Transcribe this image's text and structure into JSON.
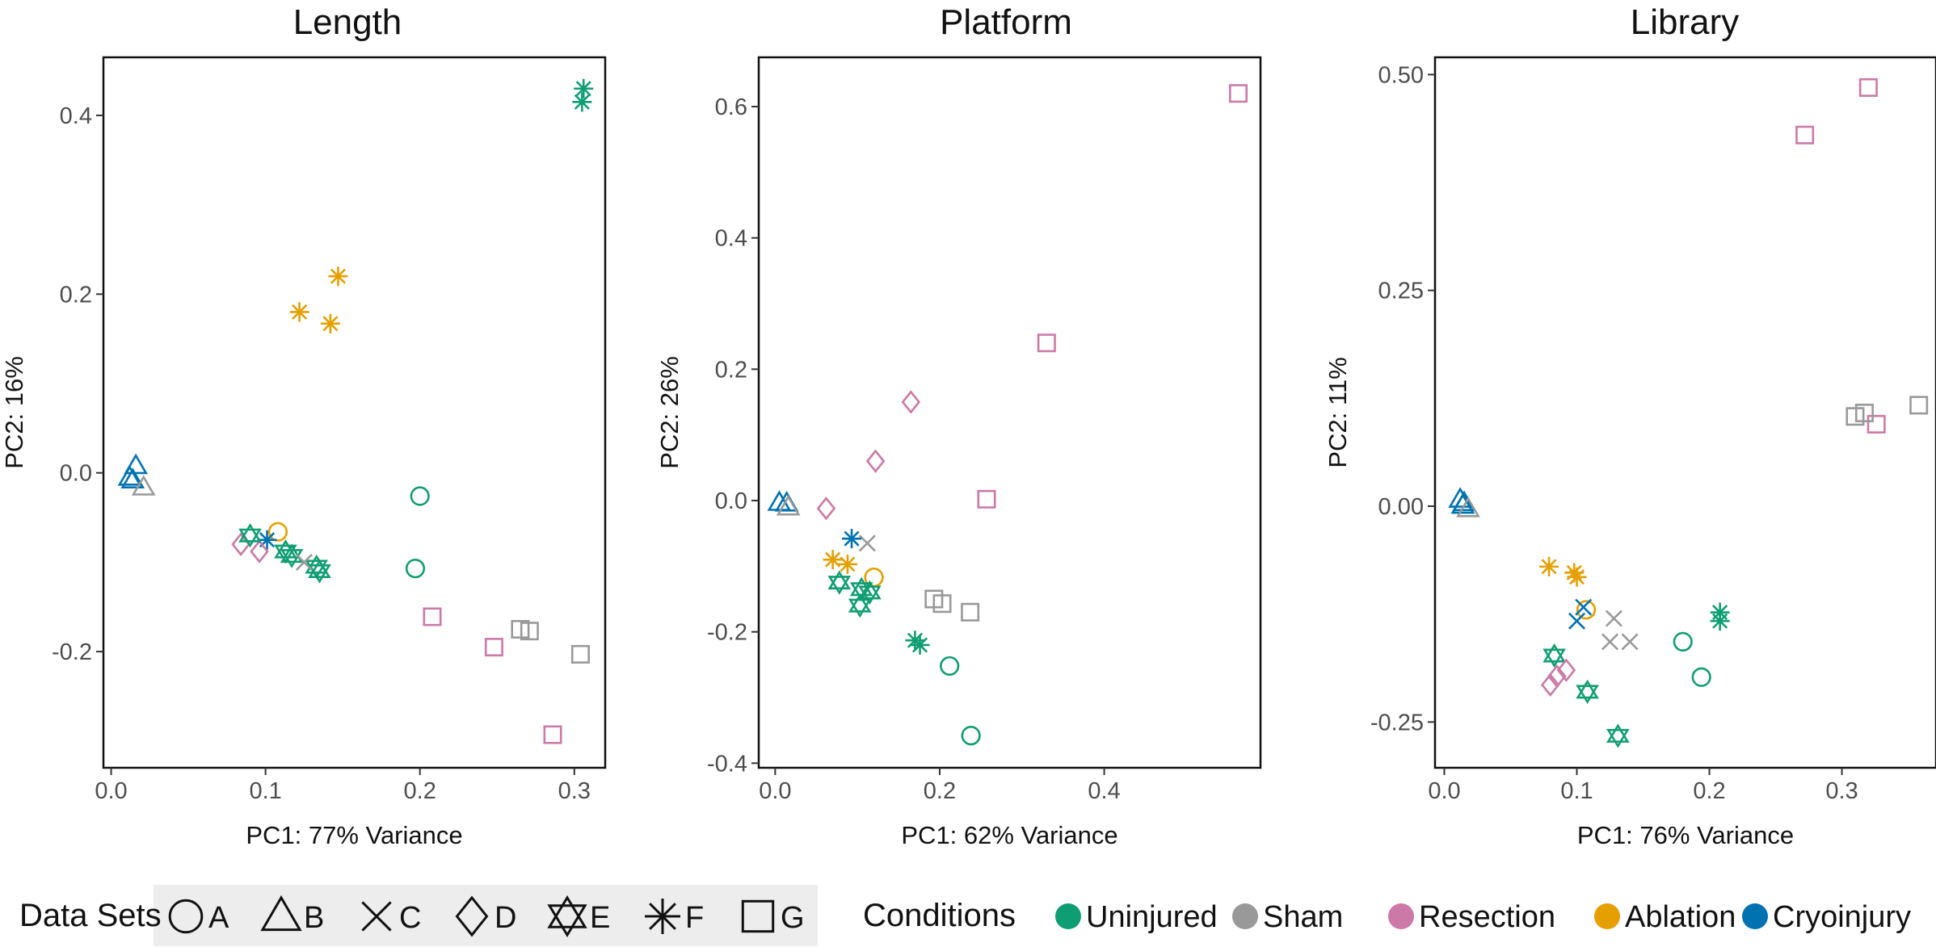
{
  "figure": {
    "colors": {
      "Uninjured": "#0f9e73",
      "Sham": "#999999",
      "Resection": "#cc79a7",
      "Ablation": "#e69f00",
      "Cryoinjury": "#0072b2"
    },
    "shape_icons": {
      "A": "circle",
      "B": "triangle-up",
      "C": "cross-x",
      "D": "diamond",
      "E": "star-of-david",
      "F": "asterisk",
      "G": "square"
    }
  },
  "legend": {
    "datasets_title": "Data Sets",
    "datasets": [
      "A",
      "B",
      "C",
      "D",
      "E",
      "F",
      "G"
    ],
    "conditions_title": "Conditions",
    "conditions": [
      "Uninjured",
      "Sham",
      "Resection",
      "Ablation",
      "Cryoinjury"
    ]
  },
  "chart_data": [
    {
      "type": "scatter",
      "title": "Length",
      "xlabel": "PC1: 77% Variance",
      "ylabel": "PC2: 16%",
      "xlim": [
        -0.005,
        0.32
      ],
      "ylim": [
        -0.33,
        0.465
      ],
      "xticks": [
        0.0,
        0.1,
        0.2,
        0.3
      ],
      "xtick_labels": [
        "0.0",
        "0.1",
        "0.2",
        "0.3"
      ],
      "yticks": [
        -0.2,
        0.0,
        0.2,
        0.4
      ],
      "ytick_labels": [
        "-0.2",
        "0.0",
        "0.2",
        "0.4"
      ],
      "grid": false,
      "points": [
        {
          "x": 0.306,
          "y": 0.43,
          "dataset": "F",
          "condition": "Uninjured"
        },
        {
          "x": 0.305,
          "y": 0.415,
          "dataset": "F",
          "condition": "Uninjured"
        },
        {
          "x": 0.147,
          "y": 0.22,
          "dataset": "F",
          "condition": "Ablation"
        },
        {
          "x": 0.122,
          "y": 0.18,
          "dataset": "F",
          "condition": "Ablation"
        },
        {
          "x": 0.142,
          "y": 0.167,
          "dataset": "F",
          "condition": "Ablation"
        },
        {
          "x": 0.016,
          "y": 0.008,
          "dataset": "B",
          "condition": "Cryoinjury"
        },
        {
          "x": 0.012,
          "y": -0.005,
          "dataset": "B",
          "condition": "Cryoinjury"
        },
        {
          "x": 0.014,
          "y": -0.008,
          "dataset": "B",
          "condition": "Cryoinjury"
        },
        {
          "x": 0.021,
          "y": -0.016,
          "dataset": "B",
          "condition": "Sham"
        },
        {
          "x": 0.2,
          "y": -0.026,
          "dataset": "A",
          "condition": "Uninjured"
        },
        {
          "x": 0.197,
          "y": -0.107,
          "dataset": "A",
          "condition": "Uninjured"
        },
        {
          "x": 0.108,
          "y": -0.066,
          "dataset": "A",
          "condition": "Ablation"
        },
        {
          "x": 0.101,
          "y": -0.075,
          "dataset": "F",
          "condition": "Cryoinjury"
        },
        {
          "x": 0.084,
          "y": -0.08,
          "dataset": "D",
          "condition": "Resection"
        },
        {
          "x": 0.096,
          "y": -0.088,
          "dataset": "D",
          "condition": "Resection"
        },
        {
          "x": 0.09,
          "y": -0.07,
          "dataset": "E",
          "condition": "Uninjured"
        },
        {
          "x": 0.113,
          "y": -0.088,
          "dataset": "E",
          "condition": "Uninjured"
        },
        {
          "x": 0.117,
          "y": -0.093,
          "dataset": "E",
          "condition": "Uninjured"
        },
        {
          "x": 0.133,
          "y": -0.105,
          "dataset": "E",
          "condition": "Uninjured"
        },
        {
          "x": 0.135,
          "y": -0.11,
          "dataset": "E",
          "condition": "Uninjured"
        },
        {
          "x": 0.125,
          "y": -0.1,
          "dataset": "C",
          "condition": "Sham"
        },
        {
          "x": 0.208,
          "y": -0.161,
          "dataset": "G",
          "condition": "Resection"
        },
        {
          "x": 0.248,
          "y": -0.195,
          "dataset": "G",
          "condition": "Resection"
        },
        {
          "x": 0.286,
          "y": -0.293,
          "dataset": "G",
          "condition": "Resection"
        },
        {
          "x": 0.265,
          "y": -0.175,
          "dataset": "G",
          "condition": "Sham"
        },
        {
          "x": 0.271,
          "y": -0.177,
          "dataset": "G",
          "condition": "Sham"
        },
        {
          "x": 0.304,
          "y": -0.203,
          "dataset": "G",
          "condition": "Sham"
        }
      ]
    },
    {
      "type": "scatter",
      "title": "Platform",
      "xlabel": "PC1: 62% Variance",
      "ylabel": "PC2: 26%",
      "xlim": [
        -0.02,
        0.59
      ],
      "ylim": [
        -0.407,
        0.675
      ],
      "xticks": [
        0.0,
        0.2,
        0.4
      ],
      "xtick_labels": [
        "0.0",
        "0.2",
        "0.4"
      ],
      "yticks": [
        -0.4,
        -0.2,
        0.0,
        0.2,
        0.4,
        0.6
      ],
      "ytick_labels": [
        "-0.4",
        "-0.2",
        "0.0",
        "0.2",
        "0.4",
        "0.6"
      ],
      "grid": false,
      "points": [
        {
          "x": 0.563,
          "y": 0.62,
          "dataset": "G",
          "condition": "Resection"
        },
        {
          "x": 0.33,
          "y": 0.24,
          "dataset": "G",
          "condition": "Resection"
        },
        {
          "x": 0.257,
          "y": 0.002,
          "dataset": "G",
          "condition": "Resection"
        },
        {
          "x": 0.165,
          "y": 0.15,
          "dataset": "D",
          "condition": "Resection"
        },
        {
          "x": 0.122,
          "y": 0.06,
          "dataset": "D",
          "condition": "Resection"
        },
        {
          "x": 0.062,
          "y": -0.012,
          "dataset": "D",
          "condition": "Resection"
        },
        {
          "x": 0.005,
          "y": -0.003,
          "dataset": "B",
          "condition": "Cryoinjury"
        },
        {
          "x": 0.014,
          "y": -0.004,
          "dataset": "B",
          "condition": "Cryoinjury"
        },
        {
          "x": 0.016,
          "y": -0.01,
          "dataset": "B",
          "condition": "Sham"
        },
        {
          "x": 0.112,
          "y": -0.065,
          "dataset": "C",
          "condition": "Sham"
        },
        {
          "x": 0.093,
          "y": -0.058,
          "dataset": "F",
          "condition": "Cryoinjury"
        },
        {
          "x": 0.07,
          "y": -0.09,
          "dataset": "F",
          "condition": "Ablation"
        },
        {
          "x": 0.088,
          "y": -0.097,
          "dataset": "F",
          "condition": "Ablation"
        },
        {
          "x": 0.12,
          "y": -0.117,
          "dataset": "A",
          "condition": "Ablation"
        },
        {
          "x": 0.078,
          "y": -0.125,
          "dataset": "E",
          "condition": "Uninjured"
        },
        {
          "x": 0.105,
          "y": -0.135,
          "dataset": "E",
          "condition": "Uninjured"
        },
        {
          "x": 0.115,
          "y": -0.14,
          "dataset": "E",
          "condition": "Uninjured"
        },
        {
          "x": 0.103,
          "y": -0.16,
          "dataset": "E",
          "condition": "Uninjured"
        },
        {
          "x": 0.193,
          "y": -0.15,
          "dataset": "G",
          "condition": "Sham"
        },
        {
          "x": 0.203,
          "y": -0.157,
          "dataset": "G",
          "condition": "Sham"
        },
        {
          "x": 0.237,
          "y": -0.17,
          "dataset": "G",
          "condition": "Sham"
        },
        {
          "x": 0.17,
          "y": -0.213,
          "dataset": "F",
          "condition": "Uninjured"
        },
        {
          "x": 0.176,
          "y": -0.22,
          "dataset": "F",
          "condition": "Uninjured"
        },
        {
          "x": 0.212,
          "y": -0.252,
          "dataset": "A",
          "condition": "Uninjured"
        },
        {
          "x": 0.238,
          "y": -0.358,
          "dataset": "A",
          "condition": "Uninjured"
        }
      ]
    },
    {
      "type": "scatter",
      "title": "Library",
      "xlabel": "PC1: 76% Variance",
      "ylabel": "PC2: 11%",
      "xlim": [
        -0.007,
        0.371
      ],
      "ylim": [
        -0.303,
        0.52
      ],
      "xticks": [
        0.0,
        0.1,
        0.2,
        0.3
      ],
      "xtick_labels": [
        "0.0",
        "0.1",
        "0.2",
        "0.3"
      ],
      "yticks": [
        -0.25,
        0.0,
        0.25,
        0.5
      ],
      "ytick_labels": [
        "-0.25",
        "0.00",
        "0.25",
        "0.50"
      ],
      "grid": false,
      "points": [
        {
          "x": 0.32,
          "y": 0.485,
          "dataset": "G",
          "condition": "Resection"
        },
        {
          "x": 0.272,
          "y": 0.43,
          "dataset": "G",
          "condition": "Resection"
        },
        {
          "x": 0.326,
          "y": 0.095,
          "dataset": "G",
          "condition": "Resection"
        },
        {
          "x": 0.358,
          "y": 0.117,
          "dataset": "G",
          "condition": "Sham"
        },
        {
          "x": 0.31,
          "y": 0.104,
          "dataset": "G",
          "condition": "Sham"
        },
        {
          "x": 0.317,
          "y": 0.108,
          "dataset": "G",
          "condition": "Sham"
        },
        {
          "x": 0.012,
          "y": 0.008,
          "dataset": "B",
          "condition": "Cryoinjury"
        },
        {
          "x": 0.015,
          "y": 0.004,
          "dataset": "B",
          "condition": "Cryoinjury"
        },
        {
          "x": 0.014,
          "y": 0.001,
          "dataset": "B",
          "condition": "Cryoinjury"
        },
        {
          "x": 0.018,
          "y": -0.003,
          "dataset": "B",
          "condition": "Sham"
        },
        {
          "x": 0.079,
          "y": -0.07,
          "dataset": "F",
          "condition": "Ablation"
        },
        {
          "x": 0.098,
          "y": -0.077,
          "dataset": "F",
          "condition": "Ablation"
        },
        {
          "x": 0.1,
          "y": -0.082,
          "dataset": "F",
          "condition": "Ablation"
        },
        {
          "x": 0.107,
          "y": -0.12,
          "dataset": "A",
          "condition": "Ablation"
        },
        {
          "x": 0.105,
          "y": -0.117,
          "dataset": "C",
          "condition": "Cryoinjury"
        },
        {
          "x": 0.1,
          "y": -0.133,
          "dataset": "C",
          "condition": "Cryoinjury"
        },
        {
          "x": 0.128,
          "y": -0.13,
          "dataset": "C",
          "condition": "Sham"
        },
        {
          "x": 0.125,
          "y": -0.157,
          "dataset": "C",
          "condition": "Sham"
        },
        {
          "x": 0.14,
          "y": -0.157,
          "dataset": "C",
          "condition": "Sham"
        },
        {
          "x": 0.208,
          "y": -0.123,
          "dataset": "F",
          "condition": "Uninjured"
        },
        {
          "x": 0.208,
          "y": -0.133,
          "dataset": "F",
          "condition": "Uninjured"
        },
        {
          "x": 0.18,
          "y": -0.157,
          "dataset": "A",
          "condition": "Uninjured"
        },
        {
          "x": 0.194,
          "y": -0.198,
          "dataset": "A",
          "condition": "Uninjured"
        },
        {
          "x": 0.083,
          "y": -0.173,
          "dataset": "E",
          "condition": "Uninjured"
        },
        {
          "x": 0.108,
          "y": -0.215,
          "dataset": "E",
          "condition": "Uninjured"
        },
        {
          "x": 0.131,
          "y": -0.266,
          "dataset": "E",
          "condition": "Uninjured"
        },
        {
          "x": 0.092,
          "y": -0.19,
          "dataset": "D",
          "condition": "Resection"
        },
        {
          "x": 0.085,
          "y": -0.197,
          "dataset": "D",
          "condition": "Resection"
        },
        {
          "x": 0.08,
          "y": -0.207,
          "dataset": "D",
          "condition": "Resection"
        }
      ]
    }
  ]
}
